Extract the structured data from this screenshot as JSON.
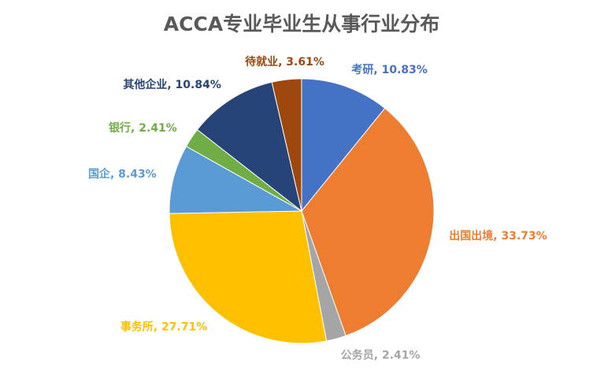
{
  "chart_data": {
    "type": "pie",
    "title": "ACCA专业毕业生从事行业分布",
    "categories": [
      "考研",
      "出国出境",
      "公务员",
      "事务所",
      "国企",
      "银行",
      "其他企业",
      "待就业"
    ],
    "values": [
      10.83,
      33.73,
      2.41,
      27.71,
      8.43,
      2.41,
      10.84,
      3.61
    ],
    "value_labels": [
      "10.83%",
      "33.73%",
      "2.41%",
      "27.71%",
      "8.43%",
      "2.41%",
      "10.84%",
      "3.61%"
    ],
    "label_separator": ", ",
    "colors": [
      "#4472c4",
      "#ed7d31",
      "#a5a5a5",
      "#ffc000",
      "#5b9bd5",
      "#70ad47",
      "#264478",
      "#9e480e"
    ]
  }
}
